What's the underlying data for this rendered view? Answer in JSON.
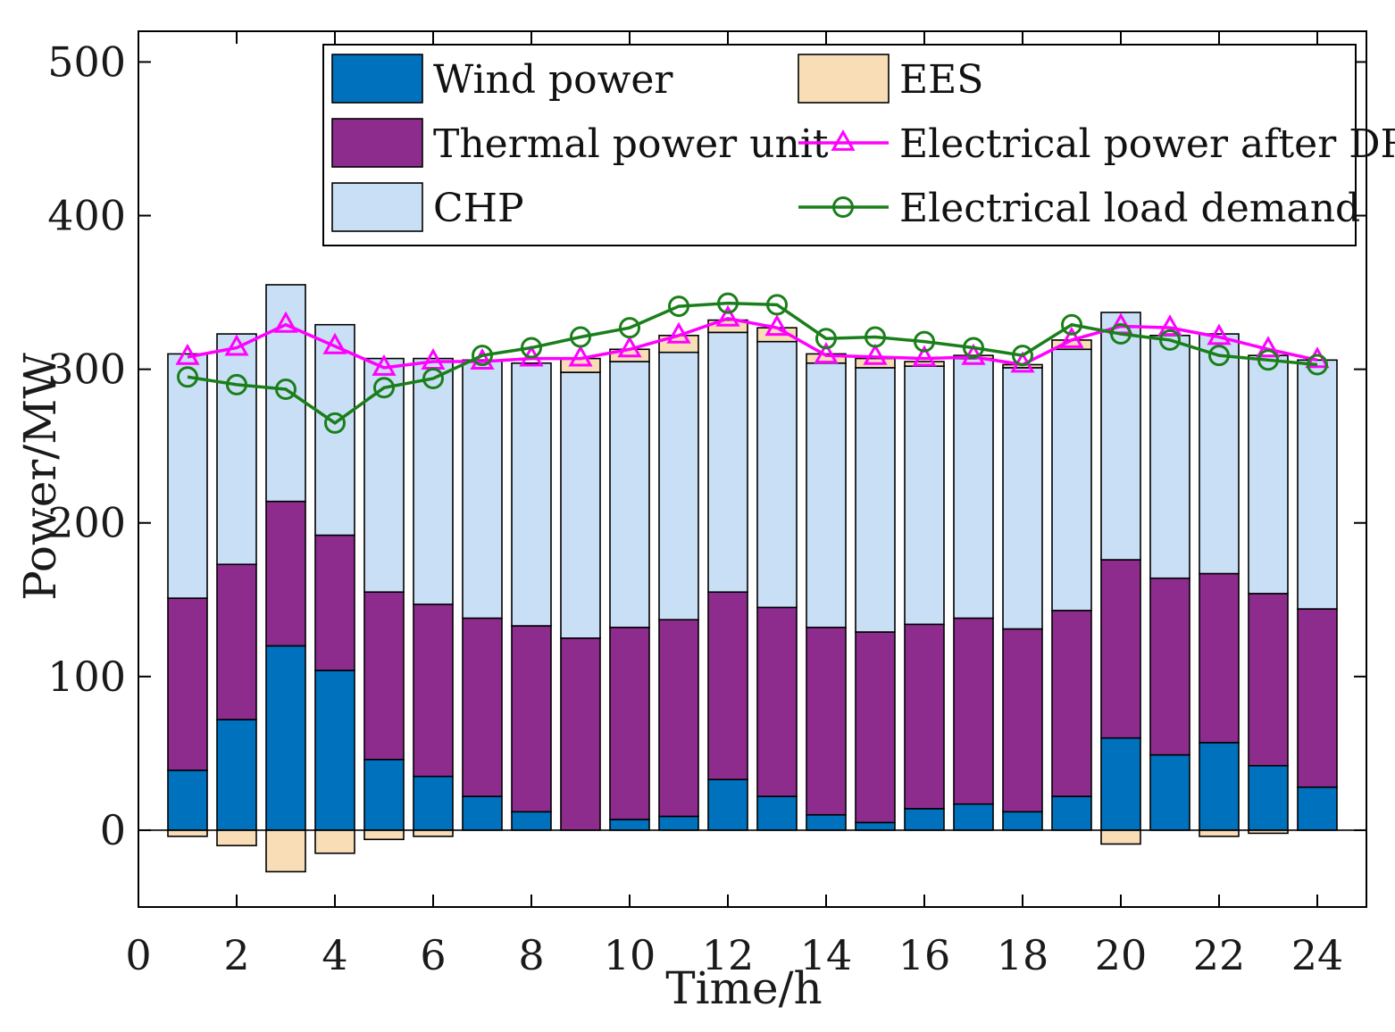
{
  "chart_data": {
    "type": "bar",
    "subtype": "stacked-bar-with-lines",
    "xlabel": "Time/h",
    "ylabel": "Power/MW",
    "xlim": [
      0,
      25
    ],
    "ylim": [
      -50,
      520
    ],
    "xticks": [
      0,
      2,
      4,
      6,
      8,
      10,
      12,
      14,
      16,
      18,
      20,
      22,
      24
    ],
    "yticks": [
      0,
      100,
      200,
      300,
      400,
      500
    ],
    "legend_position": "top",
    "x": [
      1,
      2,
      3,
      4,
      5,
      6,
      7,
      8,
      9,
      10,
      11,
      12,
      13,
      14,
      15,
      16,
      17,
      18,
      19,
      20,
      21,
      22,
      23,
      24
    ],
    "series": [
      {
        "name": "Wind power",
        "kind": "bar",
        "color": "#0072BD",
        "values": [
          39,
          72,
          120,
          104,
          46,
          35,
          22,
          12,
          0,
          7,
          9,
          33,
          22,
          10,
          5,
          14,
          17,
          12,
          22,
          60,
          49,
          57,
          42,
          28
        ]
      },
      {
        "name": "Thermal power unit",
        "kind": "bar",
        "color": "#8E2C8E",
        "values": [
          112,
          101,
          94,
          88,
          109,
          112,
          116,
          121,
          125,
          125,
          128,
          122,
          123,
          122,
          124,
          120,
          121,
          119,
          121,
          116,
          115,
          110,
          112,
          116
        ]
      },
      {
        "name": "CHP",
        "kind": "bar",
        "color": "#C9DFF5",
        "values": [
          159,
          150,
          141,
          137,
          152,
          160,
          168,
          171,
          173,
          173,
          174,
          169,
          173,
          172,
          172,
          168,
          169,
          170,
          170,
          161,
          158,
          156,
          155,
          162
        ]
      },
      {
        "name": "EES",
        "kind": "bar",
        "color": "#F8DDB7",
        "values": [
          -4,
          -10,
          -27,
          -15,
          -6,
          -4,
          0,
          0,
          9,
          8,
          11,
          8,
          9,
          6,
          6,
          3,
          2,
          2,
          6,
          -9,
          0,
          -4,
          -2,
          0
        ]
      },
      {
        "name": "Electrical power after DR",
        "kind": "line",
        "color": "#FF00FF",
        "marker": "triangle",
        "values": [
          308,
          314,
          329,
          315,
          301,
          305,
          305,
          307,
          307,
          313,
          322,
          333,
          327,
          309,
          308,
          307,
          308,
          303,
          319,
          328,
          327,
          321,
          313,
          306
        ]
      },
      {
        "name": "Electrical load demand",
        "kind": "line",
        "color": "#1A7F1A",
        "marker": "circle",
        "values": [
          295,
          290,
          287,
          265,
          288,
          294,
          309,
          314,
          321,
          327,
          341,
          343,
          342,
          320,
          321,
          318,
          314,
          309,
          329,
          323,
          319,
          309,
          306,
          303
        ]
      }
    ]
  }
}
